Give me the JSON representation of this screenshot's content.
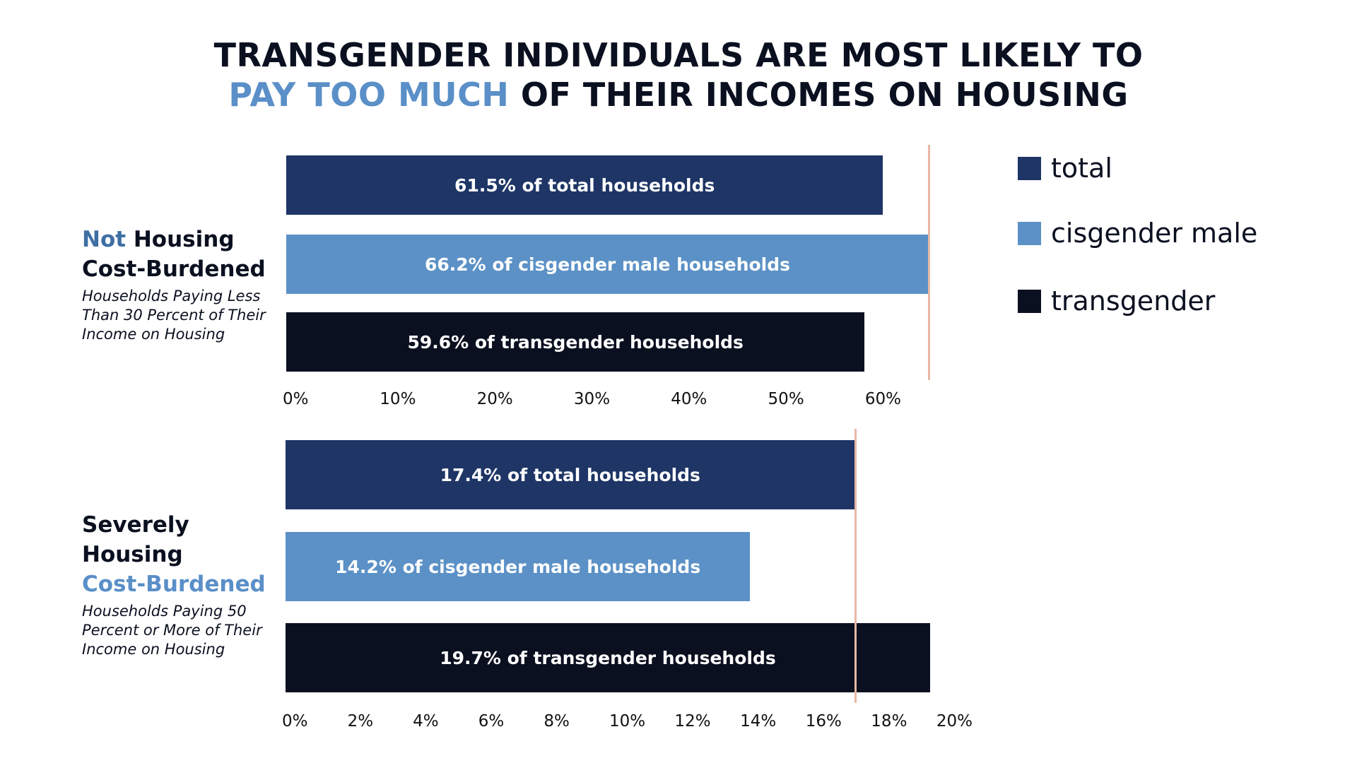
{
  "title": {
    "line1": "TRANSGENDER INDIVIDUALS ARE MOST LIKELY TO",
    "line2_highlight": "PAY TOO MUCH",
    "line2_rest": " OF THEIR INCOMES ON HOUSING"
  },
  "colors": {
    "total": "#1e3566",
    "cisgender_male": "#5b91c6",
    "transgender": "#0b1020",
    "highlight_blue": "#5a8fc8",
    "reference_line": "#e8b8a6"
  },
  "legend": [
    {
      "label": "total",
      "color": "#1e3566"
    },
    {
      "label": "cisgender male",
      "color": "#5b91c6"
    },
    {
      "label": "transgender",
      "color": "#0b1020"
    }
  ],
  "panels": [
    {
      "head_a": "Not",
      "head_b": " Housing",
      "head_c": "Cost-Burdened",
      "subtitle": "Households Paying Less Than 30 Percent of Their Income on Housing"
    },
    {
      "head_a": "Severely",
      "head_b": "Housing",
      "head_c": "Cost-Burdened",
      "subtitle": "Households Paying 50 Percent or More of Their Income on Housing"
    }
  ],
  "chart_data": [
    {
      "type": "bar",
      "orientation": "horizontal",
      "categories": [
        "total",
        "cisgender male",
        "transgender"
      ],
      "values": [
        61.5,
        66.2,
        59.6
      ],
      "labels": [
        "61.5% of total households",
        "66.2% of cisgender male households",
        "59.6% of transgender households"
      ],
      "xlim": [
        0,
        66.2
      ],
      "ticks": [
        "0%",
        "10%",
        "20%",
        "30%",
        "40%",
        "50%",
        "60%"
      ],
      "tick_values": [
        0,
        10,
        20,
        30,
        40,
        50,
        60
      ],
      "reference_line": 66.2
    },
    {
      "type": "bar",
      "orientation": "horizontal",
      "categories": [
        "total",
        "cisgender male",
        "transgender"
      ],
      "values": [
        17.4,
        14.2,
        19.7
      ],
      "labels": [
        "17.4% of total households",
        "14.2% of cisgender male households",
        "19.7% of transgender households"
      ],
      "xlim": [
        0,
        19.7
      ],
      "ticks": [
        "0%",
        "2%",
        "4%",
        "6%",
        "8%",
        "10%",
        "12%",
        "14%",
        "16%",
        "18%",
        "20%"
      ],
      "tick_values": [
        0,
        2,
        4,
        6,
        8,
        10,
        12,
        14,
        16,
        18,
        20
      ],
      "reference_line": 17.4
    }
  ]
}
